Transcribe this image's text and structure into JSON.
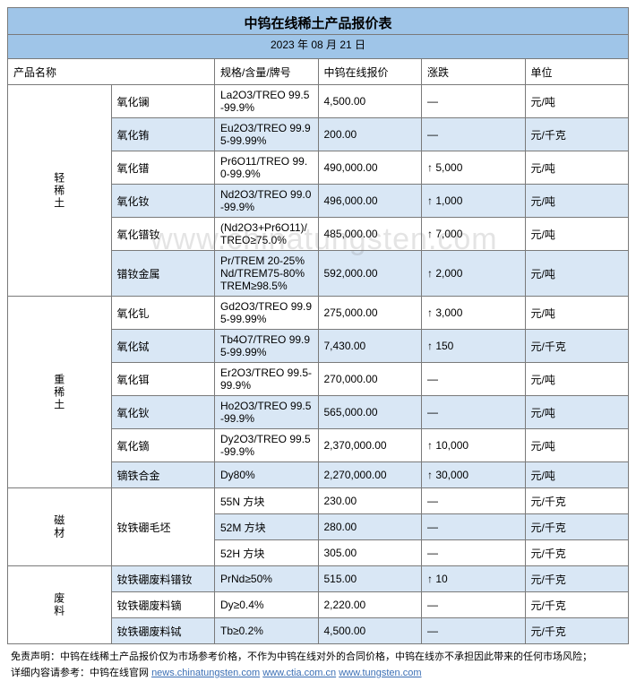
{
  "title": "中钨在线稀土产品报价表",
  "date": "2023 年 08 月 21 日",
  "headers": {
    "name": "产品名称",
    "spec": "规格/含量/牌号",
    "price": "中钨在线报价",
    "change": "涨跌",
    "unit": "单位"
  },
  "groups": [
    {
      "cat": "轻稀土",
      "rows": [
        {
          "name": "氧化镧",
          "spec": "La2O3/TREO 99.5-99.9%",
          "price": "4,500.00",
          "change": "—",
          "unit": "元/吨"
        },
        {
          "name": "氧化铕",
          "spec": "Eu2O3/TREO 99.95-99.99%",
          "price": "200.00",
          "change": "—",
          "unit": "元/千克"
        },
        {
          "name": "氧化镨",
          "spec": "Pr6O11/TREO 99.0-99.9%",
          "price": "490,000.00",
          "change": "↑ 5,000",
          "unit": "元/吨"
        },
        {
          "name": "氧化钕",
          "spec": "Nd2O3/TREO 99.0-99.9%",
          "price": "496,000.00",
          "change": "↑ 1,000",
          "unit": "元/吨"
        },
        {
          "name": "氧化镨钕",
          "spec": "(Nd2O3+Pr6O11)/TREO≥75.0%",
          "price": "485,000.00",
          "change": "↑ 7,000",
          "unit": "元/吨"
        },
        {
          "name": "镨钕金属",
          "spec": "Pr/TREM 20-25%\nNd/TREM75-80% TREM≥98.5%",
          "price": "592,000.00",
          "change": "↑ 2,000",
          "unit": "元/吨"
        }
      ]
    },
    {
      "cat": "重稀土",
      "rows": [
        {
          "name": "氧化钆",
          "spec": "Gd2O3/TREO 99.95-99.99%",
          "price": "275,000.00",
          "change": "↑ 3,000",
          "unit": "元/吨"
        },
        {
          "name": "氧化铽",
          "spec": "Tb4O7/TREO 99.95-99.99%",
          "price": "7,430.00",
          "change": "↑ 150",
          "unit": "元/千克"
        },
        {
          "name": "氧化铒",
          "spec": "Er2O3/TREO 99.5-99.9%",
          "price": "270,000.00",
          "change": "—",
          "unit": "元/吨"
        },
        {
          "name": "氧化钬",
          "spec": "Ho2O3/TREO 99.5-99.9%",
          "price": "565,000.00",
          "change": "—",
          "unit": "元/吨"
        },
        {
          "name": "氧化镝",
          "spec": "Dy2O3/TREO 99.5-99.9%",
          "price": "2,370,000.00",
          "change": "↑ 10,000",
          "unit": "元/吨"
        },
        {
          "name": "镝铁合金",
          "spec": "Dy80%",
          "price": "2,270,000.00",
          "change": "↑ 30,000",
          "unit": "元/吨"
        }
      ]
    },
    {
      "cat": "磁材",
      "rows": [
        {
          "name": "钕铁硼毛坯",
          "spec": "55N 方块",
          "price": "230.00",
          "change": "—",
          "unit": "元/千克",
          "name_rowspan": 3
        },
        {
          "name": "",
          "spec": "52M 方块",
          "price": "280.00",
          "change": "—",
          "unit": "元/千克"
        },
        {
          "name": "",
          "spec": "52H 方块",
          "price": "305.00",
          "change": "—",
          "unit": "元/千克"
        }
      ]
    },
    {
      "cat": "废料",
      "rows": [
        {
          "name": "钕铁硼废料镨钕",
          "spec": "PrNd≥50%",
          "price": "515.00",
          "change": "↑ 10",
          "unit": "元/千克"
        },
        {
          "name": "钕铁硼废料镝",
          "spec": "Dy≥0.4%",
          "price": "2,220.00",
          "change": "—",
          "unit": "元/千克"
        },
        {
          "name": "钕铁硼废料铽",
          "spec": "Tb≥0.2%",
          "price": "4,500.00",
          "change": "—",
          "unit": "元/千克"
        }
      ]
    }
  ],
  "footer": {
    "disclaimer_label": "免责声明：",
    "disclaimer_text": "中钨在线稀土产品报价仅为市场参考价格，不作为中钨在线对外的合同价格，中钨在线亦不承担因此带来的任何市场风险；",
    "detail_label": "详细内容请参考：",
    "detail_text": "中钨在线官网 ",
    "link1": "news.chinatungsten.com",
    "sep": "  ",
    "link2": "www.ctia.com.cn",
    "link3": "www.tungsten.com"
  },
  "watermark": "www.chinatungsten.com",
  "colors": {
    "header_bg": "#9fc5e8",
    "alt_bg": "#d9e7f5",
    "border": "#7a7a7a"
  }
}
